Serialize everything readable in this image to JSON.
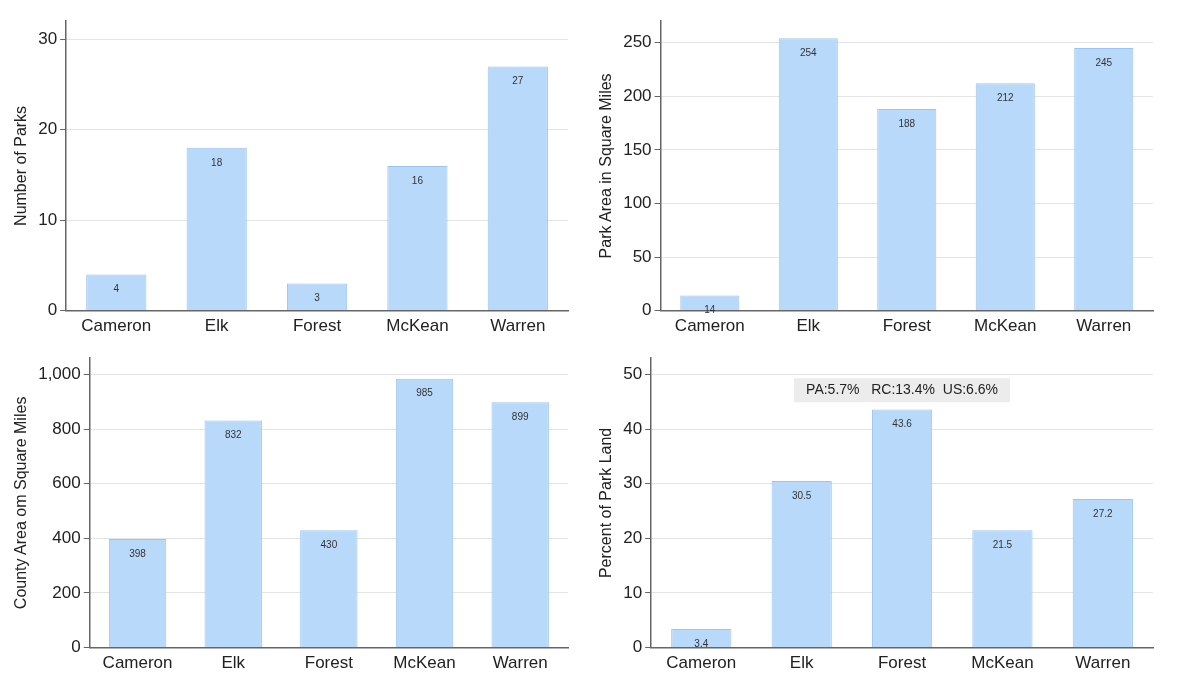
{
  "chart_data": [
    {
      "type": "bar",
      "ylabel": "Number of Parks",
      "categories": [
        "Cameron",
        "Elk",
        "Forest",
        "McKean",
        "Warren"
      ],
      "values": [
        4,
        18,
        3,
        16,
        27
      ],
      "color": "#b9d9fb",
      "ylim": [
        0,
        32
      ],
      "yticks": [
        0,
        10,
        20,
        30
      ],
      "grid": "y",
      "data_labels": true
    },
    {
      "type": "bar",
      "ylabel": "Park Area in Square Miles",
      "categories": [
        "Cameron",
        "Elk",
        "Forest",
        "McKean",
        "Warren"
      ],
      "values": [
        14,
        254,
        188,
        212,
        245
      ],
      "color": "#b9d9fb",
      "ylim": [
        0,
        270
      ],
      "yticks": [
        0,
        50,
        100,
        150,
        200,
        250
      ],
      "grid": "y",
      "data_labels": true
    },
    {
      "type": "bar",
      "ylabel": "County Area om Square Miles",
      "categories": [
        "Cameron",
        "Elk",
        "Forest",
        "McKean",
        "Warren"
      ],
      "values": [
        398,
        832,
        430,
        985,
        899
      ],
      "color": "#b9d9fb",
      "ylim": [
        0,
        1060
      ],
      "yticks": [
        0,
        200,
        400,
        600,
        800,
        {
          "value": 1000,
          "label": "1,000"
        }
      ],
      "grid": "y",
      "data_labels": true
    },
    {
      "type": "bar",
      "ylabel": "Percent of Park Land",
      "categories": [
        "Cameron",
        "Elk",
        "Forest",
        "McKean",
        "Warren"
      ],
      "values": [
        3.4,
        30.5,
        43.6,
        21.5,
        27.2
      ],
      "color": "#b9d9fb",
      "ylim": [
        0,
        53
      ],
      "yticks": [
        0,
        10,
        20,
        30,
        40,
        50
      ],
      "grid": "y",
      "data_labels": true,
      "annotations": [
        "PA:5.7%   RC:13.4%  US:6.6%"
      ]
    }
  ]
}
